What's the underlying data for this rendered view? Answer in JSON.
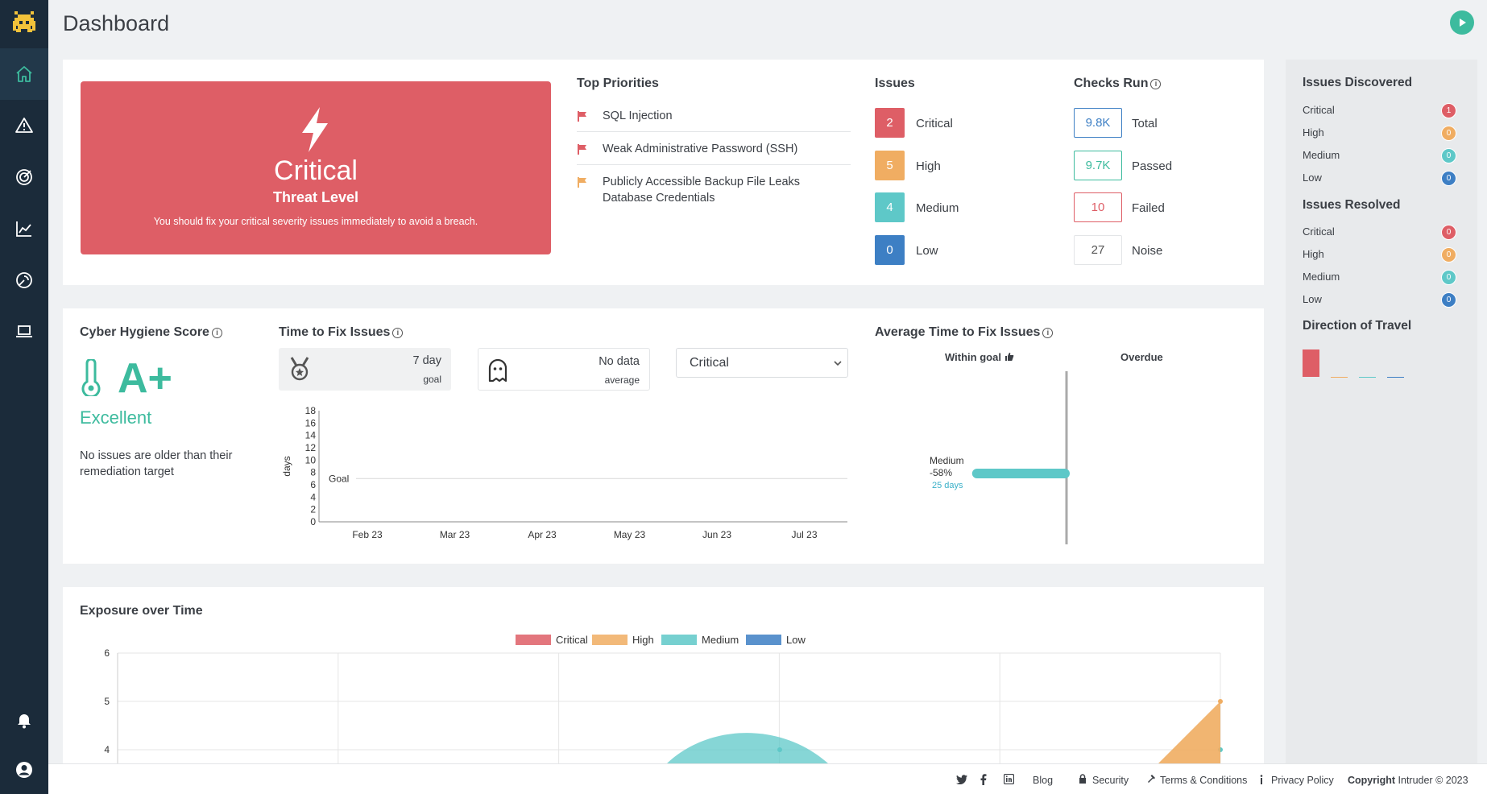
{
  "header": {
    "title": "Dashboard"
  },
  "threat": {
    "level": "Critical",
    "label": "Threat Level",
    "message": "You should fix your critical severity issues immediately to avoid a breach."
  },
  "priorities": {
    "title": "Top Priorities",
    "items": [
      {
        "label": "SQL Injection",
        "color": "#de5e66"
      },
      {
        "label": "Weak Administrative Password (SSH)",
        "color": "#de5e66"
      },
      {
        "label": "Publicly Accessible Backup File Leaks",
        "label2": "Database Credentials",
        "color": "#f0ad62"
      }
    ]
  },
  "issues": {
    "title": "Issues",
    "items": [
      {
        "count": "2",
        "label": "Critical",
        "color": "#de5e66"
      },
      {
        "count": "5",
        "label": "High",
        "color": "#f0ad62"
      },
      {
        "count": "4",
        "label": "Medium",
        "color": "#5ec8c8"
      },
      {
        "count": "0",
        "label": "Low",
        "color": "#3d7fc4"
      }
    ]
  },
  "checks": {
    "title": "Checks Run",
    "items": [
      {
        "value": "9.8K",
        "label": "Total",
        "color": "#3d7fc4"
      },
      {
        "value": "9.7K",
        "label": "Passed",
        "color": "#3dbb9e"
      },
      {
        "value": "10",
        "label": "Failed",
        "color": "#de5e66"
      },
      {
        "value": "27",
        "label": "Noise",
        "color": "#cccccc"
      }
    ]
  },
  "hygiene": {
    "title": "Cyber Hygiene Score",
    "grade": "A+",
    "rating": "Excellent",
    "description": "No issues are older than their remediation target"
  },
  "time_to_fix": {
    "title": "Time to Fix Issues",
    "goal_value": "7 day",
    "goal_label": "goal",
    "avg_value": "No data",
    "avg_label": "average",
    "select_value": "Critical"
  },
  "avg_time_to_fix": {
    "title": "Average Time to Fix Issues",
    "within_goal": "Within goal",
    "overdue": "Overdue"
  },
  "exposure": {
    "title": "Exposure over Time"
  },
  "right_panel": {
    "discovered_title": "Issues Discovered",
    "discovered": [
      {
        "label": "Critical",
        "count": "1",
        "color": "#de5e66"
      },
      {
        "label": "High",
        "count": "0",
        "color": "#f0ad62"
      },
      {
        "label": "Medium",
        "count": "0",
        "color": "#5ec8c8"
      },
      {
        "label": "Low",
        "count": "0",
        "color": "#3d7fc4"
      }
    ],
    "resolved_title": "Issues Resolved",
    "resolved": [
      {
        "label": "Critical",
        "count": "0",
        "color": "#de5e66"
      },
      {
        "label": "High",
        "count": "0",
        "color": "#f0ad62"
      },
      {
        "label": "Medium",
        "count": "0",
        "color": "#5ec8c8"
      },
      {
        "label": "Low",
        "count": "0",
        "color": "#3d7fc4"
      }
    ],
    "travel_title": "Direction of Travel",
    "travel_values": [
      1,
      0,
      0,
      0
    ]
  },
  "footer": {
    "blog": "Blog",
    "security": "Security",
    "terms": "Terms & Conditions",
    "privacy": "Privacy Policy",
    "copyright_bold": "Copyright",
    "copyright": "Intruder © 2023"
  },
  "chart_data": [
    {
      "type": "line",
      "title": "",
      "xlabel": "",
      "ylabel": "days",
      "x": [
        "Feb 23",
        "Mar 23",
        "Apr 23",
        "May 23",
        "Jun 23",
        "Jul 23"
      ],
      "yticks": [
        0,
        2,
        4,
        6,
        8,
        10,
        12,
        14,
        16,
        18
      ],
      "ylim": [
        0,
        18
      ],
      "goal_line": {
        "label": "Goal",
        "value": 7
      },
      "series": []
    },
    {
      "type": "bar",
      "orientation": "horizontal",
      "categories": [
        "Medium"
      ],
      "values": [
        -58
      ],
      "value_label": "-58%",
      "sub_label": "25 days",
      "columns": [
        "Within goal",
        "Overdue"
      ]
    },
    {
      "type": "area",
      "title": "",
      "legend_position": "top",
      "yticks": [
        4,
        5,
        6
      ],
      "ylim": [
        3.7,
        6
      ],
      "series": [
        {
          "name": "Critical",
          "color": "#de5e66",
          "values": []
        },
        {
          "name": "High",
          "color": "#f0ad62",
          "values": [
            null,
            null,
            null,
            null,
            null,
            4,
            5
          ]
        },
        {
          "name": "Medium",
          "color": "#5ec8c8",
          "values": [
            null,
            null,
            3.7,
            4.08,
            3.7,
            null,
            4
          ]
        },
        {
          "name": "Low",
          "color": "#3d7fc4",
          "values": []
        }
      ]
    }
  ]
}
